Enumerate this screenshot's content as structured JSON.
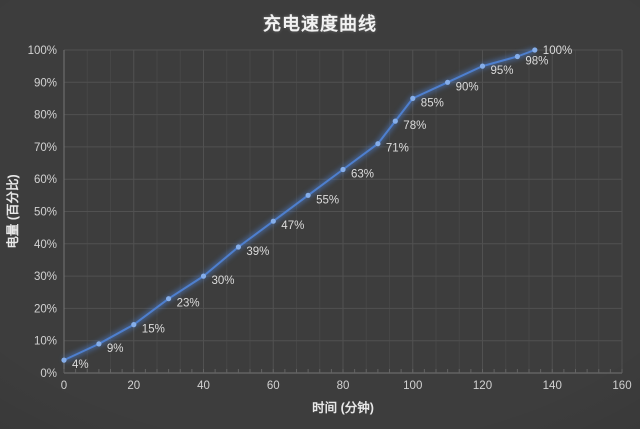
{
  "chart_data": {
    "type": "line",
    "title": "充电速度曲线",
    "xlabel": "时间 (分钟)",
    "ylabel": "电量 (百分比)",
    "x": [
      0,
      10,
      20,
      30,
      40,
      50,
      60,
      70,
      80,
      90,
      95,
      100,
      110,
      120,
      130,
      135
    ],
    "y": [
      4,
      9,
      15,
      23,
      30,
      39,
      47,
      55,
      63,
      71,
      78,
      85,
      90,
      95,
      98,
      100
    ],
    "point_labels": [
      "4%",
      "9%",
      "15%",
      "23%",
      "30%",
      "39%",
      "47%",
      "55%",
      "63%",
      "71%",
      "78%",
      "85%",
      "90%",
      "95%",
      "98%",
      "100%"
    ],
    "xlim": [
      0,
      160
    ],
    "ylim": [
      0,
      100
    ],
    "xticks": [
      0,
      20,
      40,
      60,
      80,
      100,
      120,
      140,
      160
    ],
    "xtick_labels": [
      "0",
      "20",
      "40",
      "60",
      "80",
      "100",
      "120",
      "140",
      "160"
    ],
    "yticks": [
      0,
      10,
      20,
      30,
      40,
      50,
      60,
      70,
      80,
      90,
      100
    ],
    "ytick_labels": [
      "0%",
      "10%",
      "20%",
      "30%",
      "40%",
      "50%",
      "60%",
      "70%",
      "80%",
      "90%",
      "100%"
    ],
    "grid": true,
    "legend": "none",
    "colors": {
      "background": "#3d3d3d",
      "grid_major": "#515151",
      "grid_minor": "#464646",
      "axis": "#757575",
      "tick_text": "#d2d2d2",
      "axis_title_text": "#e8e8e8",
      "title_text": "#f2f2f2",
      "line": "#4e7fce",
      "marker": "#85aeea",
      "data_label_text": "#dcdcdc"
    }
  }
}
